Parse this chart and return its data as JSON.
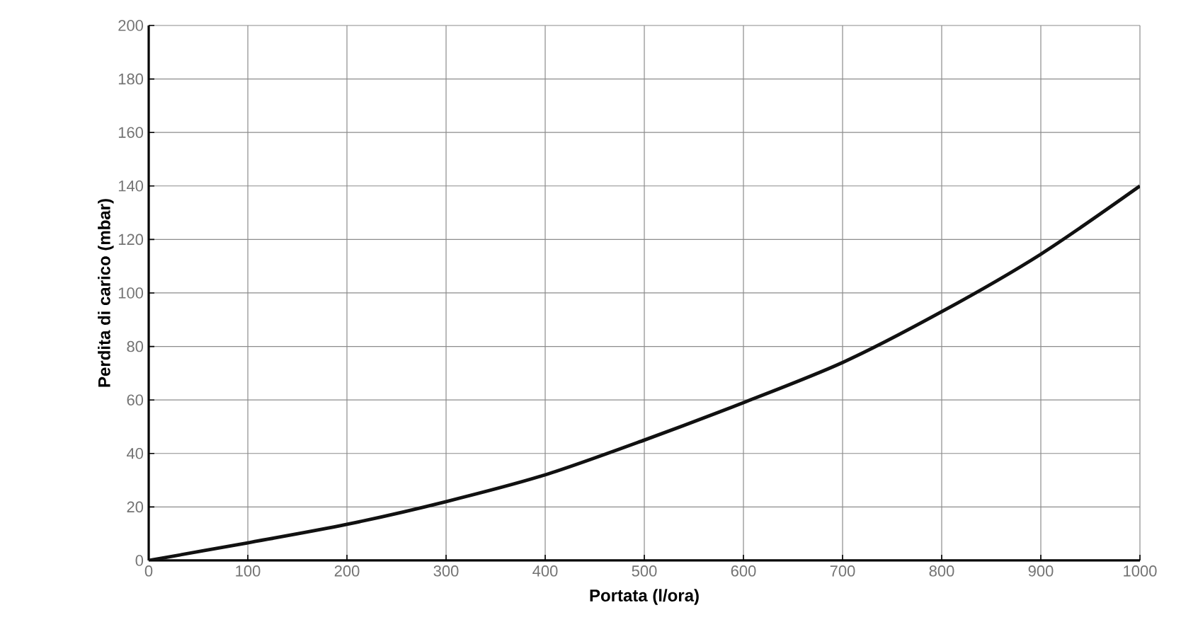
{
  "chart_data": {
    "type": "line",
    "xlabel": "Portata (l/ora)",
    "ylabel": "Perdita di carico (mbar)",
    "x": [
      0,
      100,
      200,
      300,
      400,
      500,
      600,
      700,
      800,
      900,
      1000
    ],
    "series": [
      {
        "color": "#111111",
        "values": [
          0,
          6.6,
          13.5,
          22,
          32,
          45,
          59,
          74,
          93,
          114.5,
          140
        ]
      }
    ],
    "xlim": [
      0,
      1000
    ],
    "ylim": [
      0,
      200
    ],
    "xticks": [
      0,
      100,
      200,
      300,
      400,
      500,
      600,
      700,
      800,
      900,
      1000
    ],
    "yticks": [
      0,
      20,
      40,
      60,
      80,
      100,
      120,
      140,
      160,
      180,
      200
    ],
    "grid": true,
    "marker": "none",
    "line_style": "solid"
  }
}
